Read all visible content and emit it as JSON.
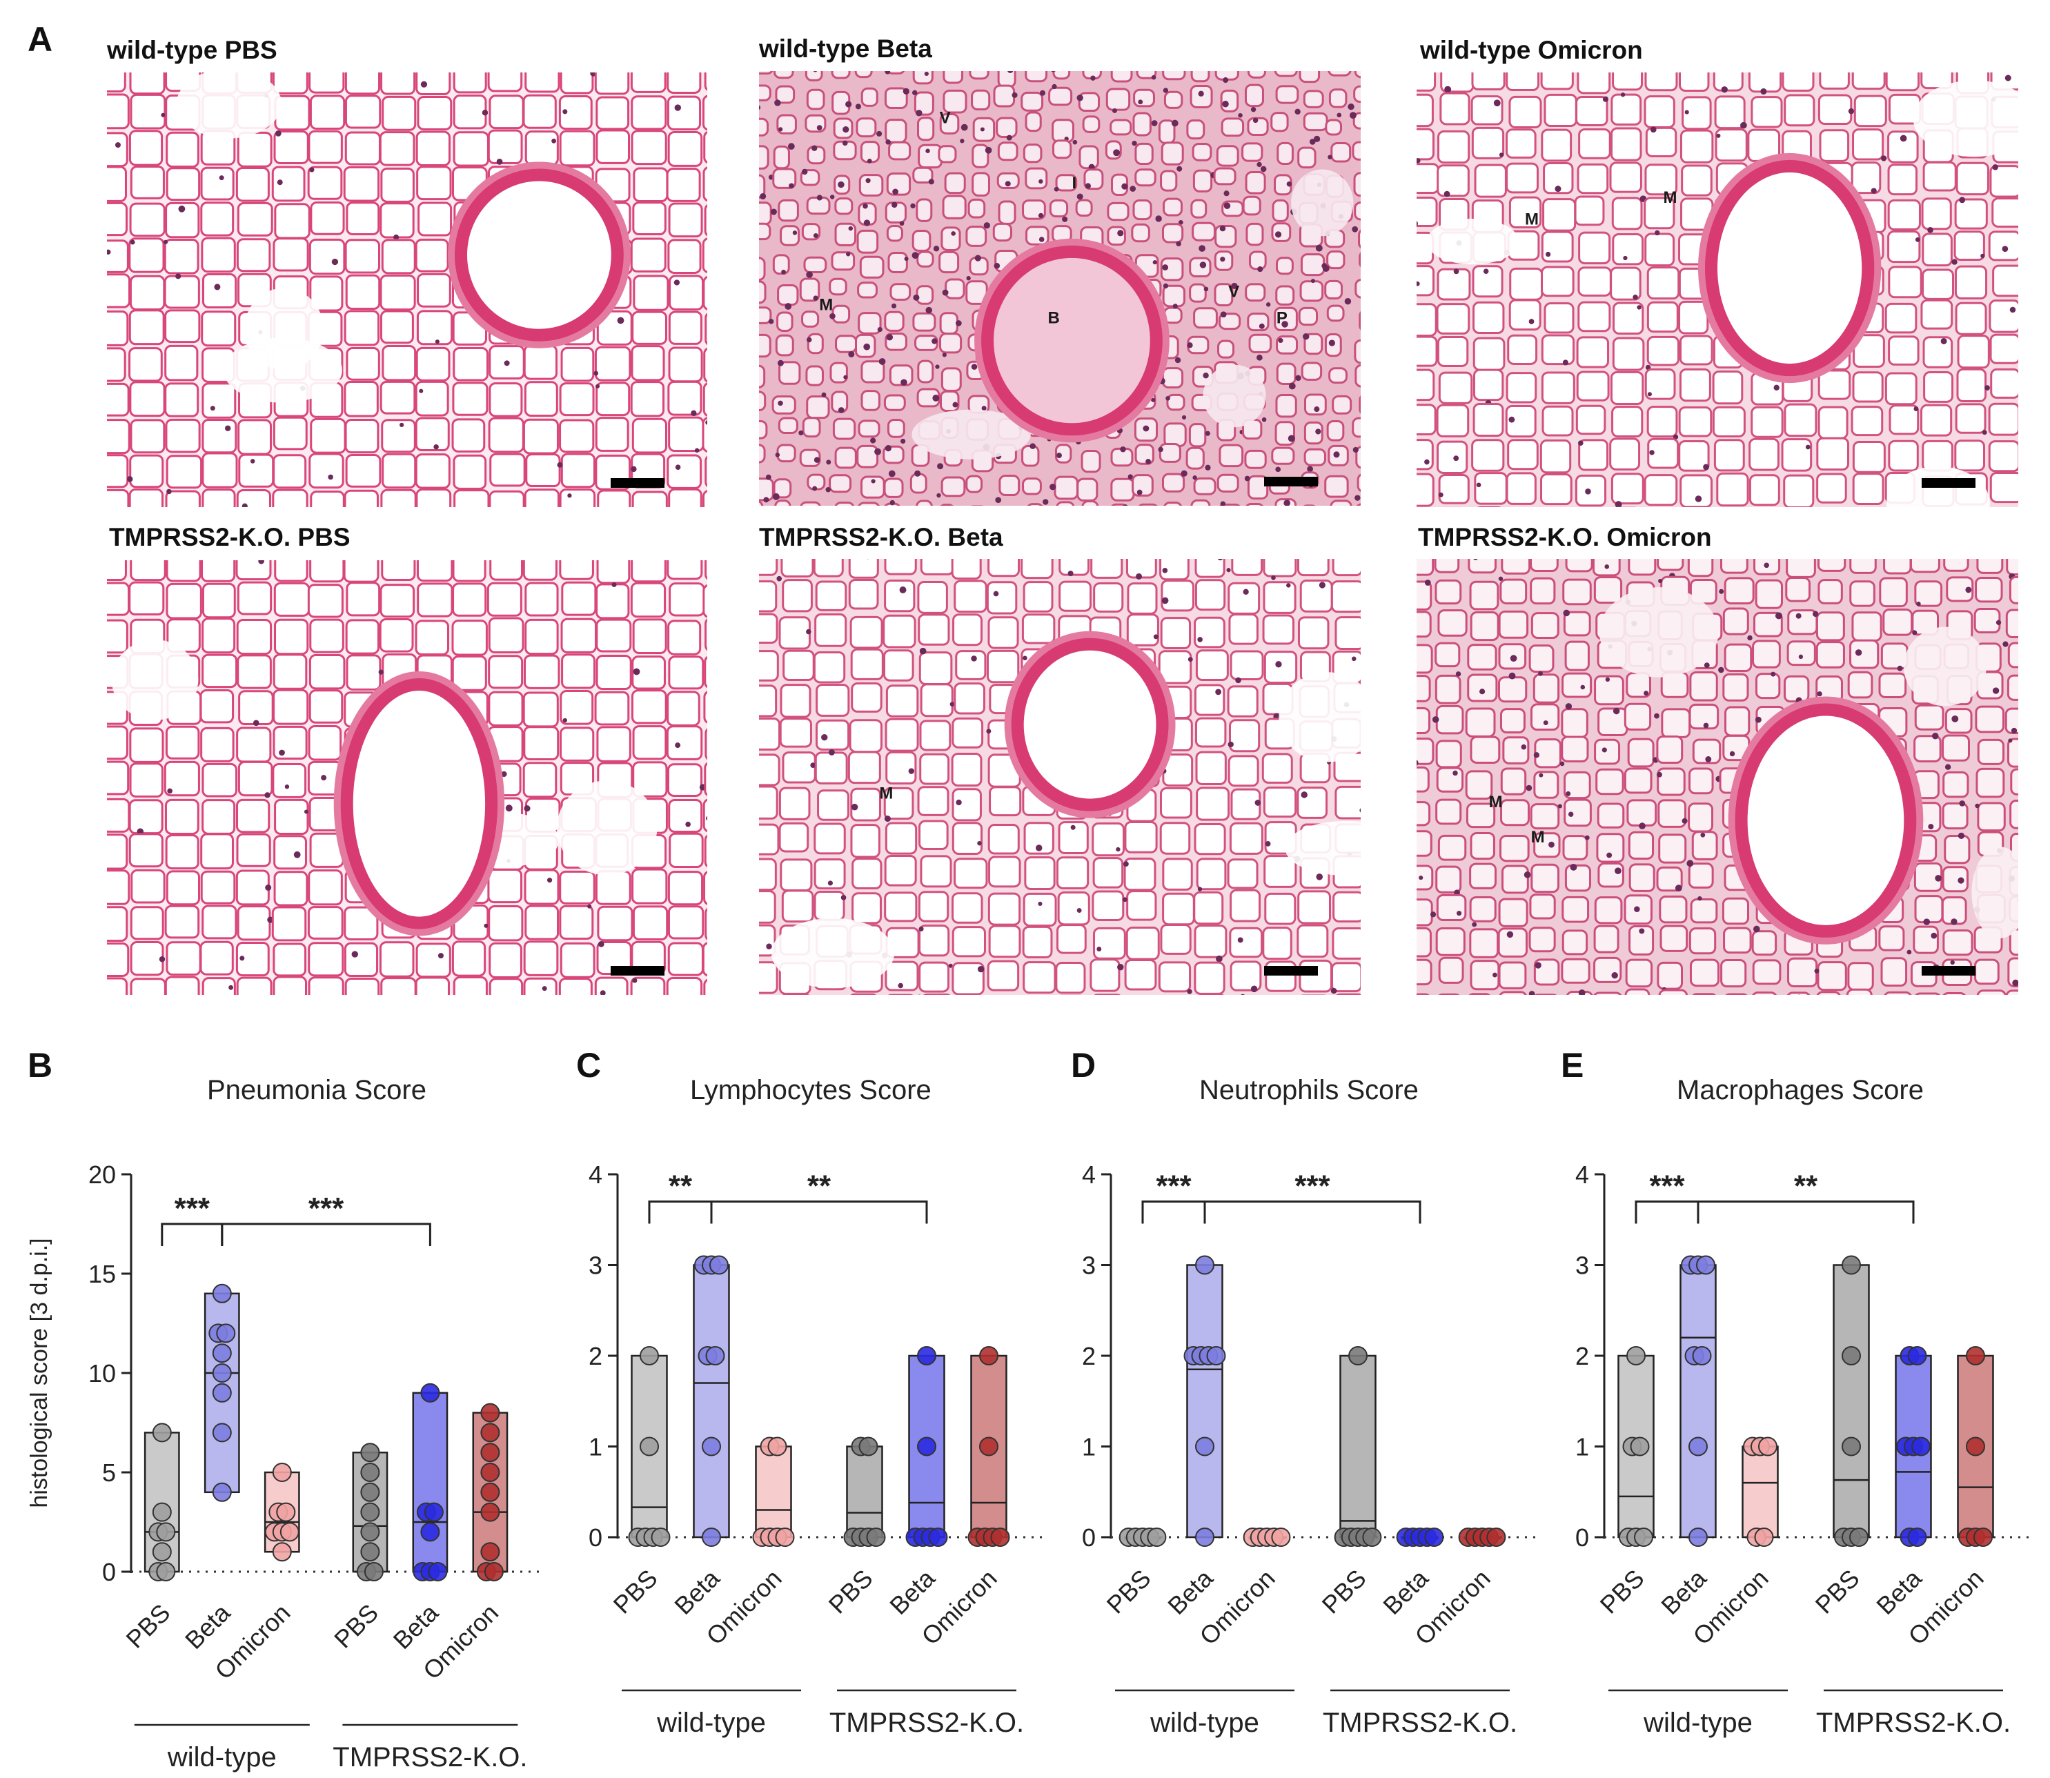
{
  "panel_labels": {
    "A": "A",
    "B": "B",
    "C": "C",
    "D": "D",
    "E": "E"
  },
  "micrographs": [
    {
      "title": "wild-type PBS",
      "labels": [],
      "style": "healthy"
    },
    {
      "title": "wild-type Beta",
      "labels": [
        "V",
        "I",
        "M",
        "B",
        "V",
        "P"
      ],
      "style": "dense"
    },
    {
      "title": "wild-type Omicron",
      "labels": [
        "M",
        "M"
      ],
      "style": "mild"
    },
    {
      "title": "TMPRSS2-K.O. PBS",
      "labels": [],
      "style": "healthy"
    },
    {
      "title": "TMPRSS2-K.O. Beta",
      "labels": [
        "M"
      ],
      "style": "mild"
    },
    {
      "title": "TMPRSS2-K.O. Omicron",
      "labels": [
        "M",
        "M"
      ],
      "style": "medium"
    }
  ],
  "chart_data": [
    {
      "type": "floating-bar",
      "panel": "B",
      "title": "Pneumonia Score",
      "ylabel": "histological score [3 d.p.i.]",
      "ylim": [
        0,
        20
      ],
      "yticks": [
        0,
        5,
        10,
        15,
        20
      ],
      "categories": [
        "PBS",
        "Beta",
        "Omicron",
        "PBS",
        "Beta",
        "Omicron"
      ],
      "groups": [
        {
          "label": "wild-type",
          "categories": [
            0,
            1,
            2
          ]
        },
        {
          "label": "TMPRSS2-K.O.",
          "categories": [
            3,
            4,
            5
          ]
        }
      ],
      "colors": [
        "#9e9e9e",
        "#7d7de0",
        "#f0a3a3",
        "#7a7a7a",
        "#2a2ae0",
        "#b03030"
      ],
      "series": [
        {
          "min": 0,
          "max": 7,
          "mean": 2.0,
          "points": [
            0,
            0,
            1,
            2,
            2,
            3,
            7
          ]
        },
        {
          "min": 4,
          "max": 14,
          "mean": 10.0,
          "points": [
            4,
            7,
            9,
            10,
            11,
            12,
            12,
            14
          ]
        },
        {
          "min": 1,
          "max": 5,
          "mean": 2.5,
          "points": [
            1,
            2,
            2,
            2,
            3,
            3,
            5
          ]
        },
        {
          "min": 0,
          "max": 6,
          "mean": 2.3,
          "points": [
            0,
            0,
            1,
            2,
            3,
            4,
            5,
            6
          ]
        },
        {
          "min": 0,
          "max": 9,
          "mean": 2.5,
          "points": [
            0,
            0,
            0,
            2,
            3,
            3,
            9
          ]
        },
        {
          "min": 0,
          "max": 8,
          "mean": 3.0,
          "points": [
            0,
            0,
            1,
            3,
            4,
            5,
            6,
            7,
            8
          ]
        }
      ],
      "significance": [
        {
          "from": 0,
          "to": 1,
          "label": "***",
          "y": 17.5
        },
        {
          "from": 1,
          "to": 4,
          "label": "***",
          "y": 17.5
        }
      ]
    },
    {
      "type": "floating-bar",
      "panel": "C",
      "title": "Lymphocytes Score",
      "ylabel": "",
      "ylim": [
        0,
        4
      ],
      "yticks": [
        0,
        1,
        2,
        3,
        4
      ],
      "categories": [
        "PBS",
        "Beta",
        "Omicron",
        "PBS",
        "Beta",
        "Omicron"
      ],
      "groups": [
        {
          "label": "wild-type",
          "categories": [
            0,
            1,
            2
          ]
        },
        {
          "label": "TMPRSS2-K.O.",
          "categories": [
            3,
            4,
            5
          ]
        }
      ],
      "colors": [
        "#9e9e9e",
        "#7d7de0",
        "#f0a3a3",
        "#7a7a7a",
        "#2a2ae0",
        "#b03030"
      ],
      "series": [
        {
          "min": 0,
          "max": 2,
          "mean": 0.33,
          "points": [
            0,
            0,
            0,
            0,
            1,
            2
          ]
        },
        {
          "min": 0,
          "max": 3,
          "mean": 1.7,
          "points": [
            0,
            1,
            2,
            2,
            3,
            3,
            3
          ]
        },
        {
          "min": 0,
          "max": 1,
          "mean": 0.3,
          "points": [
            0,
            0,
            0,
            0,
            1,
            1
          ]
        },
        {
          "min": 0,
          "max": 1,
          "mean": 0.27,
          "points": [
            0,
            0,
            0,
            0,
            1,
            1
          ]
        },
        {
          "min": 0,
          "max": 2,
          "mean": 0.38,
          "points": [
            0,
            0,
            0,
            0,
            1,
            2
          ]
        },
        {
          "min": 0,
          "max": 2,
          "mean": 0.38,
          "points": [
            0,
            0,
            0,
            0,
            1,
            2
          ]
        }
      ],
      "significance": [
        {
          "from": 0,
          "to": 1,
          "label": "**",
          "y": 3.7
        },
        {
          "from": 1,
          "to": 4,
          "label": "**",
          "y": 3.7
        }
      ]
    },
    {
      "type": "floating-bar",
      "panel": "D",
      "title": "Neutrophils Score",
      "ylabel": "",
      "ylim": [
        0,
        4
      ],
      "yticks": [
        0,
        1,
        2,
        3,
        4
      ],
      "categories": [
        "PBS",
        "Beta",
        "Omicron",
        "PBS",
        "Beta",
        "Omicron"
      ],
      "groups": [
        {
          "label": "wild-type",
          "categories": [
            0,
            1,
            2
          ]
        },
        {
          "label": "TMPRSS2-K.O.",
          "categories": [
            3,
            4,
            5
          ]
        }
      ],
      "colors": [
        "#9e9e9e",
        "#7d7de0",
        "#f0a3a3",
        "#7a7a7a",
        "#2a2ae0",
        "#b03030"
      ],
      "series": [
        {
          "min": 0,
          "max": 0,
          "mean": 0,
          "points": [
            0,
            0,
            0,
            0,
            0
          ]
        },
        {
          "min": 0,
          "max": 3,
          "mean": 1.85,
          "points": [
            0,
            1,
            2,
            2,
            2,
            2,
            3
          ]
        },
        {
          "min": 0,
          "max": 0,
          "mean": 0,
          "points": [
            0,
            0,
            0,
            0,
            0
          ]
        },
        {
          "min": 0,
          "max": 2,
          "mean": 0.18,
          "points": [
            0,
            0,
            0,
            0,
            0,
            2
          ]
        },
        {
          "min": 0,
          "max": 0,
          "mean": 0,
          "points": [
            0,
            0,
            0,
            0,
            0
          ]
        },
        {
          "min": 0,
          "max": 0,
          "mean": 0,
          "points": [
            0,
            0,
            0,
            0,
            0
          ]
        }
      ],
      "significance": [
        {
          "from": 0,
          "to": 1,
          "label": "***",
          "y": 3.7
        },
        {
          "from": 1,
          "to": 4,
          "label": "***",
          "y": 3.7
        }
      ]
    },
    {
      "type": "floating-bar",
      "panel": "E",
      "title": "Macrophages Score",
      "ylabel": "",
      "ylim": [
        0,
        4
      ],
      "yticks": [
        0,
        1,
        2,
        3,
        4
      ],
      "categories": [
        "PBS",
        "Beta",
        "Omicron",
        "PBS",
        "Beta",
        "Omicron"
      ],
      "groups": [
        {
          "label": "wild-type",
          "categories": [
            0,
            1,
            2
          ]
        },
        {
          "label": "TMPRSS2-K.O.",
          "categories": [
            3,
            4,
            5
          ]
        }
      ],
      "colors": [
        "#9e9e9e",
        "#7d7de0",
        "#f0a3a3",
        "#7a7a7a",
        "#2a2ae0",
        "#b03030"
      ],
      "series": [
        {
          "min": 0,
          "max": 2,
          "mean": 0.45,
          "points": [
            0,
            0,
            0,
            1,
            1,
            2
          ]
        },
        {
          "min": 0,
          "max": 3,
          "mean": 2.2,
          "points": [
            0,
            1,
            2,
            2,
            3,
            3,
            3
          ]
        },
        {
          "min": 0,
          "max": 1,
          "mean": 0.6,
          "points": [
            0,
            0,
            1,
            1,
            1
          ]
        },
        {
          "min": 0,
          "max": 3,
          "mean": 0.63,
          "points": [
            0,
            0,
            0,
            1,
            2,
            3
          ]
        },
        {
          "min": 0,
          "max": 2,
          "mean": 0.72,
          "points": [
            0,
            0,
            1,
            1,
            1,
            2,
            2
          ]
        },
        {
          "min": 0,
          "max": 2,
          "mean": 0.55,
          "points": [
            0,
            0,
            0,
            1,
            2
          ]
        }
      ],
      "significance": [
        {
          "from": 0,
          "to": 1,
          "label": "***",
          "y": 3.7
        },
        {
          "from": 1,
          "to": 4,
          "label": "**",
          "y": 3.7
        }
      ]
    }
  ]
}
